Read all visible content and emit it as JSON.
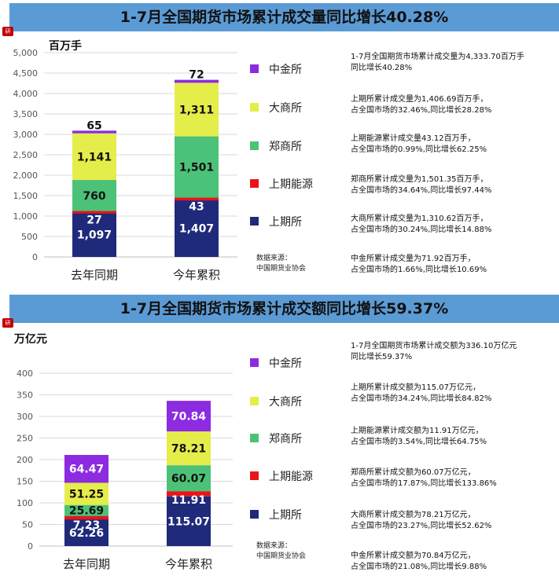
{
  "colors": {
    "上期所": "#1f2a7a",
    "上期能源": "#e8141c",
    "郑商所": "#4cc278",
    "大商所": "#e5ed4a",
    "中金所": "#8c2be0",
    "banner": "#5b9bd5"
  },
  "chart_data": [
    {
      "type": "bar",
      "stacked": true,
      "title": "1-7月全国期货市场累计成交量同比增长40.28%",
      "unit": "百万手",
      "badge": "研",
      "categories": [
        "去年同期",
        "今年累积"
      ],
      "yticks": [
        "0",
        "500",
        "1,000",
        "1,500",
        "2,000",
        "2,500",
        "3,000",
        "3,500",
        "4,000",
        "4,500",
        "5,000"
      ],
      "ylim": [
        0,
        5000
      ],
      "series": [
        {
          "name": "上期所",
          "values": [
            1097,
            1407
          ],
          "labels": [
            "1,097",
            "1,407"
          ]
        },
        {
          "name": "上期能源",
          "values": [
            27,
            43
          ],
          "labels": [
            "27",
            "43"
          ]
        },
        {
          "name": "郑商所",
          "values": [
            760,
            1501
          ],
          "labels": [
            "760",
            "1,501"
          ]
        },
        {
          "name": "大商所",
          "values": [
            1141,
            1311
          ],
          "labels": [
            "1,141",
            "1,311"
          ]
        },
        {
          "name": "中金所",
          "values": [
            65,
            72
          ],
          "labels": [
            "65",
            "72"
          ]
        }
      ],
      "legend": [
        "中金所",
        "大商所",
        "郑商所",
        "上期能源",
        "上期所"
      ],
      "source": [
        "数据来源：",
        "中国期货业协会"
      ],
      "notes": [
        [
          "1-7月全国期货市场累计成交量为4,333.70百万手",
          "同比增长40.28%"
        ],
        [
          "上期所累计成交量为1,406.69百万手，",
          "占全国市场的32.46%,同比增长28.28%"
        ],
        [
          "上期能源累计成交量43.12百万手，",
          "占全国市场的0.99%,同比增长62.25%"
        ],
        [
          "郑商所累计成交量为1,501.35百万手，",
          "占全国市场的34.64%,同比增长97.44%"
        ],
        [
          "大商所累计成交量为1,310.62百万手，",
          "占全国市场的30.24%,同比增长14.88%"
        ],
        [
          "中金所累计成交量为71.92百万手，",
          "占全国市场的1.66%,同比增长10.69%"
        ]
      ]
    },
    {
      "type": "bar",
      "stacked": true,
      "title": "1-7月全国期货市场累计成交额同比增长59.37%",
      "unit": "万亿元",
      "badge": "研",
      "categories": [
        "去年同期",
        "今年累积"
      ],
      "yticks": [
        "0",
        "50",
        "100",
        "150",
        "200",
        "250",
        "300",
        "350",
        "400"
      ],
      "ylim": [
        0,
        400
      ],
      "series": [
        {
          "name": "上期所",
          "values": [
            62.26,
            115.07
          ],
          "labels": [
            "62.26",
            "115.07"
          ]
        },
        {
          "name": "上期能源",
          "values": [
            7.23,
            11.91
          ],
          "labels": [
            "7.23",
            "11.91"
          ]
        },
        {
          "name": "郑商所",
          "values": [
            25.69,
            60.07
          ],
          "labels": [
            "25.69",
            "60.07"
          ]
        },
        {
          "name": "大商所",
          "values": [
            51.25,
            78.21
          ],
          "labels": [
            "51.25",
            "78.21"
          ]
        },
        {
          "name": "中金所",
          "values": [
            64.47,
            70.84
          ],
          "labels": [
            "64.47",
            "70.84"
          ]
        }
      ],
      "legend": [
        "中金所",
        "大商所",
        "郑商所",
        "上期能源",
        "上期所"
      ],
      "source": [
        "数据来源：",
        "中国期货业协会"
      ],
      "notes": [
        [
          "1-7月全国期货市场累计成交额为336.10万亿元",
          "同比增长59.37%"
        ],
        [
          "上期所累计成交额为115.07万亿元，",
          "占全国市场的34.24%,同比增长84.82%"
        ],
        [
          "上期能源累计成交额为11.91万亿元，",
          "占全国市场的3.54%,同比增长64.75%"
        ],
        [
          "郑商所累计成交额为60.07万亿元，",
          "占全国市场的17.87%,同比增长133.86%"
        ],
        [
          "大商所累计成交额为78.21万亿元，",
          "占全国市场的23.27%,同比增长52.62%"
        ],
        [
          "中金所累计成交额为70.84万亿元，",
          "占全国市场的21.08%,同比增长9.88%"
        ]
      ]
    }
  ]
}
